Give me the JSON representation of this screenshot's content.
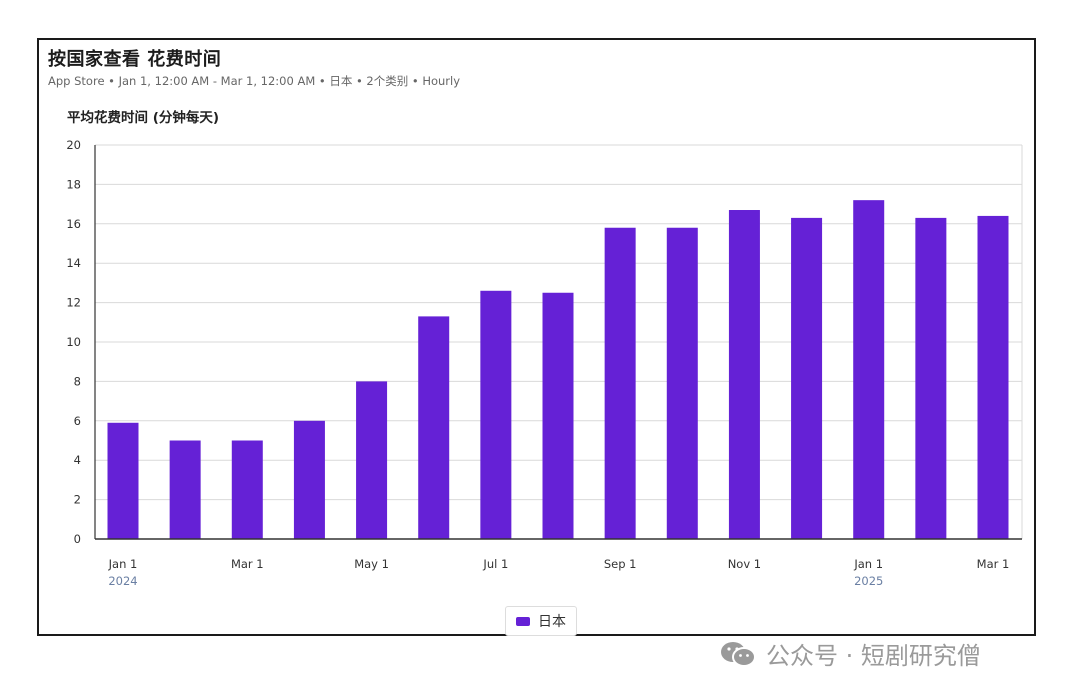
{
  "header": {
    "title": "按国家查看 花费时间",
    "subtitle": "App Store • Jan 1, 12:00 AM - Mar 1, 12:00 AM • 日本 • 2个类别 • Hourly"
  },
  "watermark": {
    "text": "公众号 · 短剧研究僧",
    "icon": "wechat-icon"
  },
  "colors": {
    "bar": "#6521d6",
    "grid": "#d9d9d9",
    "axis": "#333333",
    "year": "#6a7fa3"
  },
  "chart_data": {
    "type": "bar",
    "ylabel": "平均花费时间 (分钟每天)",
    "xlabel": "",
    "ylim": [
      0,
      20
    ],
    "yticks": [
      0,
      2,
      4,
      6,
      8,
      10,
      12,
      14,
      16,
      18,
      20
    ],
    "grid": true,
    "legend_position": "bottom-center",
    "categories": [
      "Jan 2024",
      "Feb 2024",
      "Mar 2024",
      "Apr 2024",
      "May 2024",
      "Jun 2024",
      "Jul 2024",
      "Aug 2024",
      "Sep 2024",
      "Oct 2024",
      "Nov 2024",
      "Dec 2024",
      "Jan 2025",
      "Feb 2025",
      "Mar 2025"
    ],
    "xtick_labels": [
      "Jan 1",
      "",
      "Mar 1",
      "",
      "May 1",
      "",
      "Jul 1",
      "",
      "Sep 1",
      "",
      "Nov 1",
      "",
      "Jan 1",
      "",
      "Mar 1"
    ],
    "year_labels": [
      {
        "index": 0,
        "text": "2024"
      },
      {
        "index": 12,
        "text": "2025"
      }
    ],
    "series": [
      {
        "name": "日本",
        "values": [
          5.9,
          5.0,
          5.0,
          6.0,
          8.0,
          11.3,
          12.6,
          12.5,
          15.8,
          15.8,
          16.7,
          16.3,
          17.2,
          16.3,
          16.4
        ]
      }
    ]
  }
}
